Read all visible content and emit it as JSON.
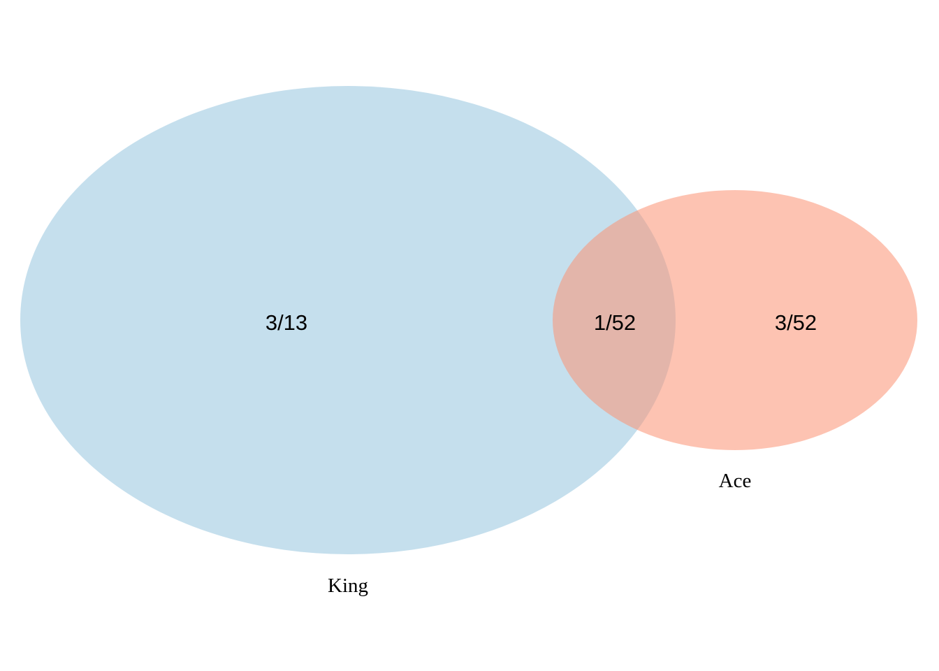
{
  "diagram": {
    "type": "venn",
    "sets": [
      {
        "name": "King",
        "color": "#9ecae1",
        "opacity": 0.6
      },
      {
        "name": "Ace",
        "color": "#fc9272",
        "opacity": 0.55
      }
    ],
    "regions": {
      "king_only": "3/13",
      "intersection": "1/52",
      "ace_only": "3/52"
    }
  }
}
